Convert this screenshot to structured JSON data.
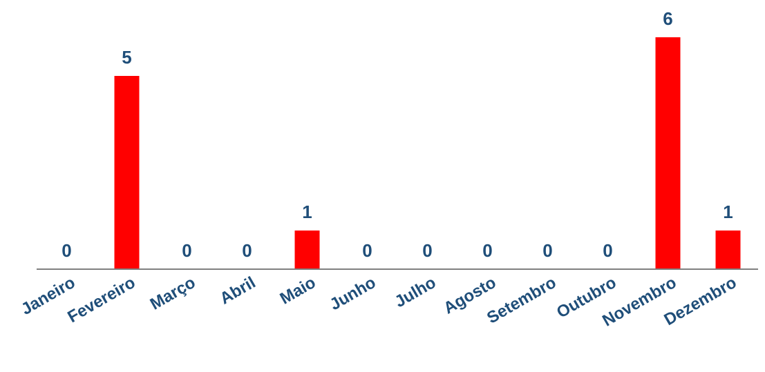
{
  "chart_data": {
    "type": "bar",
    "categories": [
      "Janeiro",
      "Fevereiro",
      "Março",
      "Abril",
      "Maio",
      "Junho",
      "Julho",
      "Agosto",
      "Setembro",
      "Outubro",
      "Novembro",
      "Dezembro"
    ],
    "values": [
      0,
      5,
      0,
      0,
      1,
      0,
      0,
      0,
      0,
      0,
      6,
      1
    ],
    "data_labels": [
      "0",
      "5",
      "0",
      "0",
      "1",
      "0",
      "0",
      "0",
      "0",
      "0",
      "6",
      "1"
    ],
    "title": "",
    "xlabel": "",
    "ylabel": "",
    "ylim": [
      0,
      6
    ],
    "grid": false,
    "legend": "none",
    "bar_color": "#ff0000",
    "label_color": "#1f4e79",
    "axis_color": "#7f7f7f"
  }
}
